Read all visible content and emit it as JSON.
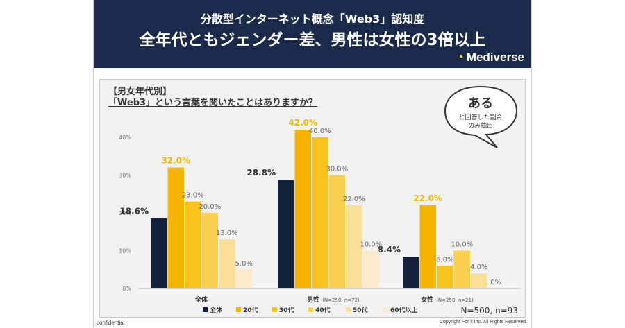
{
  "header": {
    "subtitle": "分散型インターネット概念「Web3」認知度",
    "title": "全年代ともジェンダー差、男性は女性の3倍以上",
    "brand": "Mediverse"
  },
  "panel": {
    "tag": "【男女年代別】",
    "question": "「Web3」という言葉を聞いたことはありますか？"
  },
  "bubble": {
    "big": "ある",
    "line1": "と回答した割合",
    "line2": "のみ抽出"
  },
  "chart_data": {
    "type": "bar",
    "categories": [
      "全体",
      "男性",
      "女性"
    ],
    "category_notes": [
      "",
      "(N=250, n=72)",
      "(N=250, n=21)"
    ],
    "series": [
      {
        "name": "全体",
        "values": [
          18.6,
          28.8,
          8.4
        ]
      },
      {
        "name": "20代",
        "values": [
          32.0,
          42.0,
          22.0
        ]
      },
      {
        "name": "30代",
        "values": [
          23.0,
          40.0,
          6.0
        ]
      },
      {
        "name": "40代",
        "values": [
          20.0,
          30.0,
          10.0
        ]
      },
      {
        "name": "50代",
        "values": [
          13.0,
          22.0,
          4.0
        ]
      },
      {
        "name": "60代以上",
        "values": [
          5.0,
          10.0,
          0
        ]
      }
    ],
    "value_labels": [
      [
        "18.6%",
        "28.8%",
        "8.4%"
      ],
      [
        "32.0%",
        "42.0%",
        "22.0%"
      ],
      [
        "23.0%",
        "40.0%",
        "6.0%"
      ],
      [
        "20.0%",
        "30.0%",
        "10.0%"
      ],
      [
        "13.0%",
        "22.0%",
        "4.0%"
      ],
      [
        "5.0%",
        "10.0%",
        "0%"
      ]
    ],
    "colors": [
      "#14213d",
      "#f5b400",
      "#f7c21c",
      "#f8cf4e",
      "#f9df98",
      "#fbeacb"
    ],
    "label_colors": [
      "#333333",
      "#f5b400",
      "#666666",
      "#666666",
      "#666666",
      "#666666"
    ],
    "yticks": [
      "0%",
      "10%",
      "20%",
      "30%",
      "40%"
    ],
    "ylim": [
      0,
      45
    ],
    "legend_position": "bottom",
    "sample_note": "N=500, n=93"
  },
  "footer": {
    "left": "confidential",
    "right": "Copyright For it Inc. All Rights Reserved."
  }
}
